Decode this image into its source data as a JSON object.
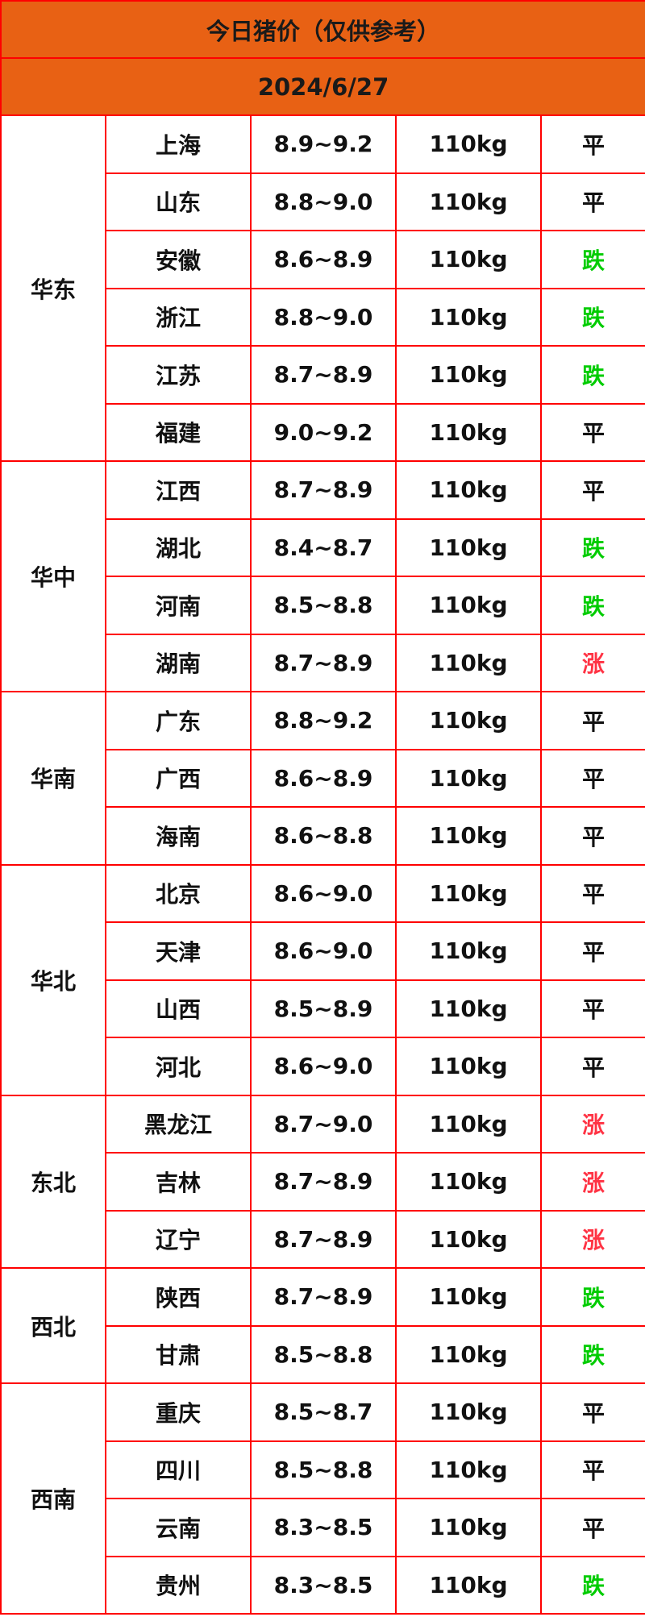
{
  "title": "今日猪价（仅供参考）",
  "date": "2024/6/27",
  "colors": {
    "header_bg": "#e86114",
    "border": "#ff0000",
    "flat": "#111111",
    "down": "#00cc00",
    "up": "#ff3344"
  },
  "regions": [
    {
      "name": "华东",
      "rows": [
        {
          "province": "上海",
          "price": "8.9~9.2",
          "weight": "110kg",
          "trend": "平"
        },
        {
          "province": "山东",
          "price": "8.8~9.0",
          "weight": "110kg",
          "trend": "平"
        },
        {
          "province": "安徽",
          "price": "8.6~8.9",
          "weight": "110kg",
          "trend": "跌"
        },
        {
          "province": "浙江",
          "price": "8.8~9.0",
          "weight": "110kg",
          "trend": "跌"
        },
        {
          "province": "江苏",
          "price": "8.7~8.9",
          "weight": "110kg",
          "trend": "跌"
        },
        {
          "province": "福建",
          "price": "9.0~9.2",
          "weight": "110kg",
          "trend": "平"
        }
      ]
    },
    {
      "name": "华中",
      "rows": [
        {
          "province": "江西",
          "price": "8.7~8.9",
          "weight": "110kg",
          "trend": "平"
        },
        {
          "province": "湖北",
          "price": "8.4~8.7",
          "weight": "110kg",
          "trend": "跌"
        },
        {
          "province": "河南",
          "price": "8.5~8.8",
          "weight": "110kg",
          "trend": "跌"
        },
        {
          "province": "湖南",
          "price": "8.7~8.9",
          "weight": "110kg",
          "trend": "涨"
        }
      ]
    },
    {
      "name": "华南",
      "rows": [
        {
          "province": "广东",
          "price": "8.8~9.2",
          "weight": "110kg",
          "trend": "平"
        },
        {
          "province": "广西",
          "price": "8.6~8.9",
          "weight": "110kg",
          "trend": "平"
        },
        {
          "province": "海南",
          "price": "8.6~8.8",
          "weight": "110kg",
          "trend": "平"
        }
      ]
    },
    {
      "name": "华北",
      "rows": [
        {
          "province": "北京",
          "price": "8.6~9.0",
          "weight": "110kg",
          "trend": "平"
        },
        {
          "province": "天津",
          "price": "8.6~9.0",
          "weight": "110kg",
          "trend": "平"
        },
        {
          "province": "山西",
          "price": "8.5~8.9",
          "weight": "110kg",
          "trend": "平"
        },
        {
          "province": "河北",
          "price": "8.6~9.0",
          "weight": "110kg",
          "trend": "平"
        }
      ]
    },
    {
      "name": "东北",
      "rows": [
        {
          "province": "黑龙江",
          "price": "8.7~9.0",
          "weight": "110kg",
          "trend": "涨"
        },
        {
          "province": "吉林",
          "price": "8.7~8.9",
          "weight": "110kg",
          "trend": "涨"
        },
        {
          "province": "辽宁",
          "price": "8.7~8.9",
          "weight": "110kg",
          "trend": "涨"
        }
      ]
    },
    {
      "name": "西北",
      "rows": [
        {
          "province": "陕西",
          "price": "8.7~8.9",
          "weight": "110kg",
          "trend": "跌"
        },
        {
          "province": "甘肃",
          "price": "8.5~8.8",
          "weight": "110kg",
          "trend": "跌"
        }
      ]
    },
    {
      "name": "西南",
      "rows": [
        {
          "province": "重庆",
          "price": "8.5~8.7",
          "weight": "110kg",
          "trend": "平"
        },
        {
          "province": "四川",
          "price": "8.5~8.8",
          "weight": "110kg",
          "trend": "平"
        },
        {
          "province": "云南",
          "price": "8.3~8.5",
          "weight": "110kg",
          "trend": "平"
        },
        {
          "province": "贵州",
          "price": "8.3~8.5",
          "weight": "110kg",
          "trend": "跌"
        }
      ]
    }
  ]
}
